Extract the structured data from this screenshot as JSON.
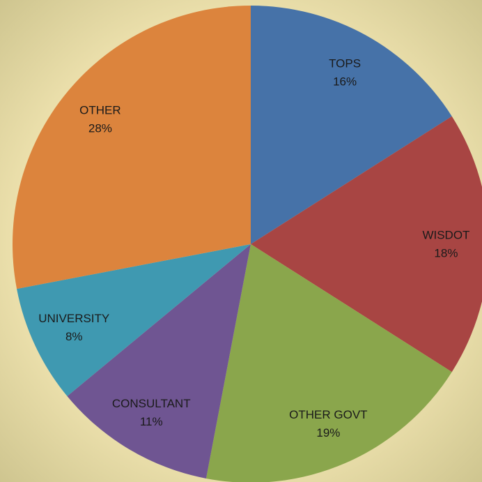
{
  "chart_data": {
    "type": "pie",
    "categories": [
      "TOPS",
      "WISDOT",
      "OTHER GOVT",
      "CONSULTANT",
      "UNIVERSITY",
      "OTHER"
    ],
    "values": [
      16,
      18,
      19,
      11,
      8,
      28
    ],
    "value_labels": [
      "16%",
      "18%",
      "19%",
      "11%",
      "8%",
      "28%"
    ],
    "colors": [
      "#4672a8",
      "#a84543",
      "#8aa64c",
      "#6f5592",
      "#3f99b1",
      "#dc843d"
    ]
  }
}
